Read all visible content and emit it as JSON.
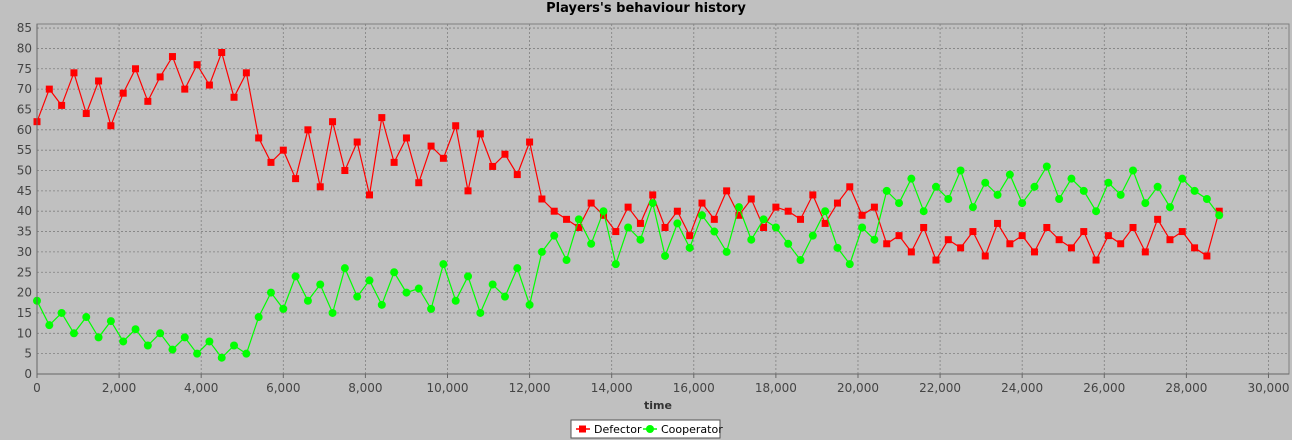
{
  "chart_data": {
    "type": "line",
    "title": "Players's behaviour history",
    "xlabel": "time",
    "ylabel": "",
    "xlim": [
      0,
      30500
    ],
    "ylim": [
      0,
      86
    ],
    "x_ticks": [
      0,
      2000,
      4000,
      6000,
      8000,
      10000,
      12000,
      14000,
      16000,
      18000,
      20000,
      22000,
      24000,
      26000,
      28000,
      30000
    ],
    "x_tick_labels": [
      "0",
      "2,000",
      "4,000",
      "6,000",
      "8,000",
      "10,000",
      "12,000",
      "14,000",
      "16,000",
      "18,000",
      "20,000",
      "22,000",
      "24,000",
      "26,000",
      "28,000",
      "30,000"
    ],
    "y_ticks": [
      0,
      5,
      10,
      15,
      20,
      25,
      30,
      35,
      40,
      45,
      50,
      55,
      60,
      65,
      70,
      75,
      80,
      85
    ],
    "grid": true,
    "legend": "bottom-center",
    "series": [
      {
        "name": "Defector",
        "color": "#ff0000",
        "marker": "square",
        "x": [
          0,
          300,
          600,
          900,
          1200,
          1500,
          1800,
          2100,
          2400,
          2700,
          3000,
          3300,
          3600,
          3900,
          4200,
          4500,
          4800,
          5100,
          5400,
          5700,
          6000,
          6300,
          6600,
          6900,
          7200,
          7500,
          7800,
          8100,
          8400,
          8700,
          9000,
          9300,
          9600,
          9900,
          10200,
          10500,
          10800,
          11100,
          11400,
          11700,
          12000,
          12300,
          12600,
          12900,
          13200,
          13500,
          13800,
          14100,
          14400,
          14700,
          15000,
          15300,
          15600,
          15900,
          16200,
          16500,
          16800,
          17100,
          17400,
          17700,
          18000,
          18300,
          18600,
          18900,
          19200,
          19500,
          19800,
          20100,
          20400,
          20700,
          21000,
          21300,
          21600,
          21900,
          22200,
          22500,
          22800,
          23100,
          23400,
          23700,
          24000,
          24300,
          24600,
          24900,
          25200,
          25500,
          25800,
          26100,
          26400,
          26700,
          27000,
          27300,
          27600,
          27900,
          28200,
          28500,
          28800
        ],
        "values": [
          62,
          70,
          66,
          74,
          64,
          72,
          61,
          69,
          75,
          67,
          73,
          78,
          70,
          76,
          71,
          79,
          68,
          74,
          58,
          52,
          55,
          48,
          60,
          46,
          62,
          50,
          57,
          44,
          63,
          52,
          58,
          47,
          56,
          53,
          61,
          45,
          59,
          51,
          54,
          49,
          57,
          43,
          40,
          38,
          36,
          42,
          39,
          35,
          41,
          37,
          44,
          36,
          40,
          34,
          42,
          38,
          45,
          39,
          43,
          36,
          41,
          40,
          38,
          44,
          37,
          42,
          46,
          39,
          41,
          32,
          34,
          30,
          36,
          28,
          33,
          31,
          35,
          29,
          37,
          32,
          34,
          30,
          36,
          33,
          31,
          35,
          28,
          34,
          32,
          36,
          30,
          38,
          33,
          35,
          31,
          29,
          40
        ]
      },
      {
        "name": "Cooperator",
        "color": "#00ff00",
        "marker": "circle",
        "x": [
          0,
          300,
          600,
          900,
          1200,
          1500,
          1800,
          2100,
          2400,
          2700,
          3000,
          3300,
          3600,
          3900,
          4200,
          4500,
          4800,
          5100,
          5400,
          5700,
          6000,
          6300,
          6600,
          6900,
          7200,
          7500,
          7800,
          8100,
          8400,
          8700,
          9000,
          9300,
          9600,
          9900,
          10200,
          10500,
          10800,
          11100,
          11400,
          11700,
          12000,
          12300,
          12600,
          12900,
          13200,
          13500,
          13800,
          14100,
          14400,
          14700,
          15000,
          15300,
          15600,
          15900,
          16200,
          16500,
          16800,
          17100,
          17400,
          17700,
          18000,
          18300,
          18600,
          18900,
          19200,
          19500,
          19800,
          20100,
          20400,
          20700,
          21000,
          21300,
          21600,
          21900,
          22200,
          22500,
          22800,
          23100,
          23400,
          23700,
          24000,
          24300,
          24600,
          24900,
          25200,
          25500,
          25800,
          26100,
          26400,
          26700,
          27000,
          27300,
          27600,
          27900,
          28200,
          28500,
          28800
        ],
        "values": [
          18,
          12,
          15,
          10,
          14,
          9,
          13,
          8,
          11,
          7,
          10,
          6,
          9,
          5,
          8,
          4,
          7,
          5,
          14,
          20,
          16,
          24,
          18,
          22,
          15,
          26,
          19,
          23,
          17,
          25,
          20,
          21,
          16,
          27,
          18,
          24,
          15,
          22,
          19,
          26,
          17,
          30,
          34,
          28,
          38,
          32,
          40,
          27,
          36,
          33,
          42,
          29,
          37,
          31,
          39,
          35,
          30,
          41,
          33,
          38,
          36,
          32,
          28,
          34,
          40,
          31,
          27,
          36,
          33,
          45,
          42,
          48,
          40,
          46,
          43,
          50,
          41,
          47,
          44,
          49,
          42,
          46,
          51,
          43,
          48,
          45,
          40,
          47,
          44,
          50,
          42,
          46,
          41,
          48,
          45,
          43,
          39
        ]
      }
    ]
  }
}
